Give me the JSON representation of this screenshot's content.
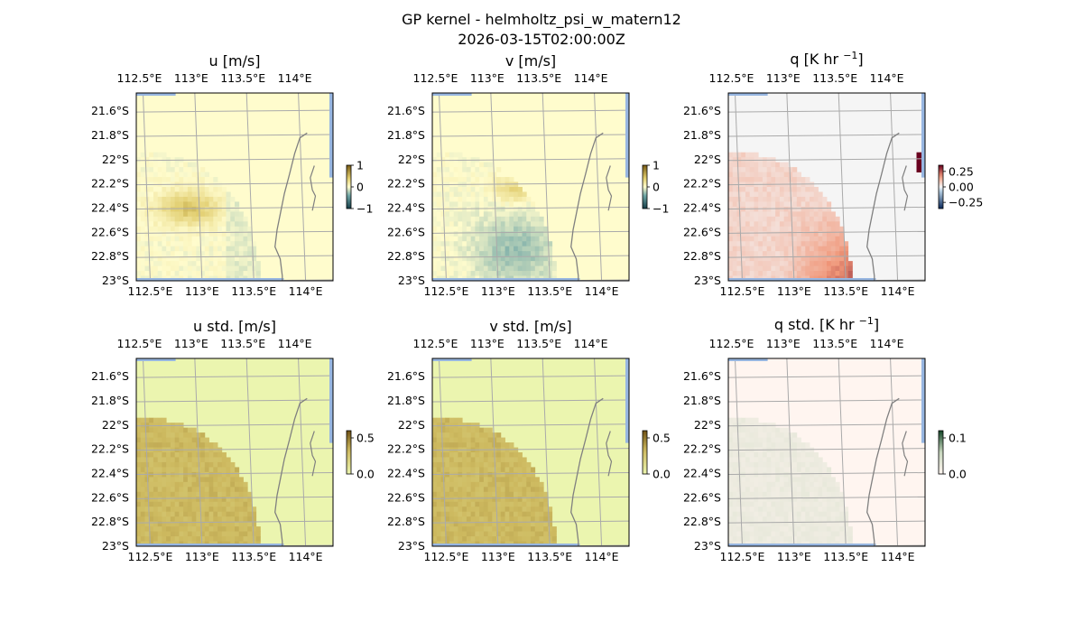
{
  "figure": {
    "title_line1": "GP kernel - helmholtz_psi_w_matern12",
    "title_line2": "2026-03-15T02:00:00Z"
  },
  "panels": [
    {
      "title_main": "u [m/s]",
      "title_sup": "",
      "title_tail": "",
      "colorbar_ticks": [
        "1",
        "0",
        "−1"
      ],
      "colorbar_range": [
        -1,
        1
      ],
      "colormap": "diverging-teal-yellow"
    },
    {
      "title_main": "v [m/s]",
      "title_sup": "",
      "title_tail": "",
      "colorbar_ticks": [
        "1",
        "0",
        "−1"
      ],
      "colorbar_range": [
        -1,
        1
      ],
      "colormap": "diverging-teal-yellow"
    },
    {
      "title_main": "q [K hr ",
      "title_sup": "−1",
      "title_tail": "]",
      "colorbar_ticks": [
        "0.25",
        "0.00",
        "−0.25"
      ],
      "colorbar_range": [
        -0.35,
        0.35
      ],
      "colormap": "diverging-blue-red"
    },
    {
      "title_main": "u std. [m/s]",
      "title_sup": "",
      "title_tail": "",
      "colorbar_ticks": [
        "0.5",
        "0.0"
      ],
      "colorbar_range": [
        0,
        0.6
      ],
      "colormap": "sequential-yellow-brown"
    },
    {
      "title_main": "v std. [m/s]",
      "title_sup": "",
      "title_tail": "",
      "colorbar_ticks": [
        "0.5",
        "0.0"
      ],
      "colorbar_range": [
        0,
        0.6
      ],
      "colormap": "sequential-yellow-brown"
    },
    {
      "title_main": "q std. [K hr ",
      "title_sup": "−1",
      "title_tail": "]",
      "colorbar_ticks": [
        "0.1",
        "0.0"
      ],
      "colorbar_range": [
        0,
        0.12
      ],
      "colormap": "sequential-pink-green"
    }
  ],
  "axes": {
    "lon_ticks": [
      "112.5°E",
      "113°E",
      "113.5°E",
      "114°E"
    ],
    "lat_ticks": [
      "21.6°S",
      "21.8°S",
      "22°S",
      "22.2°S",
      "22.4°S",
      "22.6°S",
      "22.8°S",
      "23°S"
    ]
  },
  "chart_data": {
    "type": "heatmap",
    "title": "GP kernel - helmholtz_psi_w_matern12",
    "subtitle": "2026-03-15T02:00:00Z",
    "x_axis": {
      "label": "",
      "ticks": [
        112.5,
        113.0,
        113.5,
        114.0
      ],
      "range": [
        112.4,
        114.3
      ]
    },
    "y_axis": {
      "label": "",
      "ticks": [
        -21.6,
        -21.8,
        -22.0,
        -22.2,
        -22.4,
        -22.6,
        -22.8,
        -23.0
      ],
      "range": [
        -23.0,
        -21.5
      ]
    },
    "grid": true,
    "maps": [
      {
        "variable": "u [m/s]",
        "range": [
          -1,
          1
        ]
      },
      {
        "variable": "v [m/s]",
        "range": [
          -1,
          1
        ]
      },
      {
        "variable": "q [K hr^-1]",
        "range": [
          -0.35,
          0.35
        ]
      },
      {
        "variable": "u std. [m/s]",
        "range": [
          0,
          0.6
        ]
      },
      {
        "variable": "v std. [m/s]",
        "range": [
          0,
          0.6
        ]
      },
      {
        "variable": "q std. [K hr^-1]",
        "range": [
          0,
          0.12
        ]
      }
    ]
  }
}
